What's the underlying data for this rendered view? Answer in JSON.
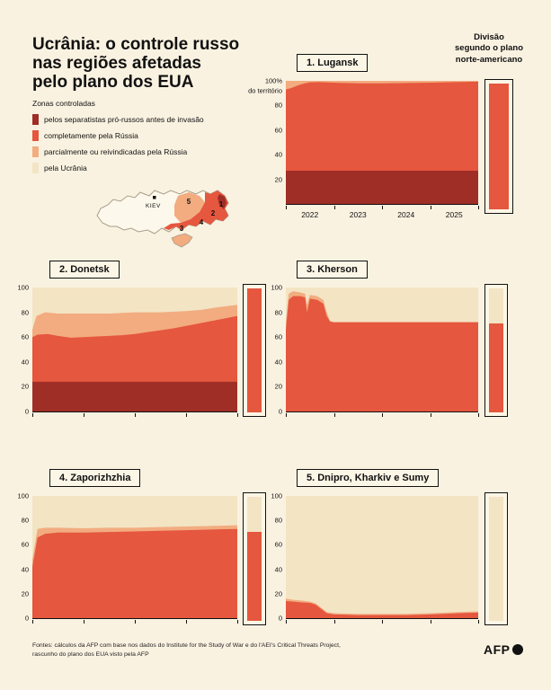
{
  "title": "Ucrânia: o controle russo\nnas regiões afetadas\npelo plano dos EUA",
  "colors": {
    "separatists": "#9f2e26",
    "russia": "#e5573e",
    "claimed": "#f2ac80",
    "ukraine": "#f3e4c4",
    "background": "#faf2e1"
  },
  "legend": {
    "heading": "Zonas controladas",
    "items": [
      {
        "label": "pelos separatistas pró-russos antes de invasão",
        "color_key": "separatists"
      },
      {
        "label": "completamente pela Rússia",
        "color_key": "russia"
      },
      {
        "label": "parcialmente ou reivindicadas pela Rússia",
        "color_key": "claimed"
      },
      {
        "label": "pela Ucrânia",
        "color_key": "ukraine"
      }
    ]
  },
  "map": {
    "capital_label": "KIEV",
    "markers": [
      "1",
      "2",
      "3",
      "4",
      "5"
    ]
  },
  "plan": {
    "heading": "Divisão\nsegundo o plano\nnorte-americano"
  },
  "footer": {
    "sources": "Fontes: cálculos da AFP com base nos dados do Institute for the Study of War e do l'AEI's Critical Threats Project,\nrascunho do plano dos EUA visto pela AFP",
    "logo": "AFP"
  },
  "chart_data": [
    {
      "name": "Lugansk",
      "title": "1. Lugansk",
      "type": "area",
      "x_range": [
        2022,
        2026
      ],
      "ylim": [
        0,
        100
      ],
      "y_ticks": [
        {
          "v": 100,
          "label": "100%"
        },
        {
          "v": 92,
          "label": "do território"
        },
        {
          "v": 80,
          "label": "80"
        },
        {
          "v": 60,
          "label": "60"
        },
        {
          "v": 40,
          "label": "40"
        },
        {
          "v": 20,
          "label": "20"
        }
      ],
      "x_labels": [
        {
          "v": 2022.5,
          "label": "2022"
        },
        {
          "v": 2023.5,
          "label": "2023"
        },
        {
          "v": 2024.5,
          "label": "2024"
        },
        {
          "v": 2025.5,
          "label": "2025"
        }
      ],
      "series": [
        {
          "name": "reivindicado pela Rússia",
          "color": "claimed",
          "x": [
            2022,
            2026
          ],
          "values": [
            100,
            100
          ]
        },
        {
          "name": "controlado pela Rússia",
          "color": "russia",
          "x": [
            2022,
            2022.1,
            2022.2,
            2022.3,
            2022.4,
            2022.5,
            2022.7,
            2023,
            2023.5,
            2024,
            2024.5,
            2025,
            2025.5,
            2026
          ],
          "values": [
            93,
            94,
            95.5,
            97,
            98,
            98.8,
            99,
            98.5,
            98,
            98,
            98.3,
            98.5,
            99,
            99.4
          ]
        },
        {
          "name": "separatistas antes da invasão",
          "color": "separatists",
          "x": [
            2022,
            2026
          ],
          "values": [
            27,
            27
          ]
        }
      ],
      "plan_russia_pct": 100
    },
    {
      "name": "Donetsk",
      "title": "2. Donetsk",
      "type": "area",
      "x_range": [
        2022,
        2026
      ],
      "ylim": [
        0,
        100
      ],
      "y_ticks": [
        {
          "v": 100,
          "label": "100"
        },
        {
          "v": 80,
          "label": "80"
        },
        {
          "v": 60,
          "label": "60"
        },
        {
          "v": 40,
          "label": "40"
        },
        {
          "v": 20,
          "label": "20"
        },
        {
          "v": 0,
          "label": "0"
        }
      ],
      "series": [
        {
          "name": "reivindicado pela Rússia",
          "color": "claimed",
          "x": [
            2022,
            2022.08,
            2022.25,
            2022.5,
            2023,
            2023.5,
            2024,
            2024.5,
            2025,
            2025.3,
            2025.6,
            2026
          ],
          "values": [
            66,
            77,
            80,
            79,
            79,
            79,
            80,
            80,
            81,
            82,
            84,
            86
          ]
        },
        {
          "name": "controlado pela Rússia",
          "color": "russia",
          "x": [
            2022,
            2022.1,
            2022.3,
            2022.5,
            2022.75,
            2023,
            2023.25,
            2023.5,
            2023.75,
            2024,
            2024.25,
            2024.5,
            2024.75,
            2025,
            2025.25,
            2025.5,
            2025.75,
            2026
          ],
          "values": [
            60,
            62,
            62.5,
            61,
            59.5,
            60,
            60.5,
            61,
            61.5,
            62.5,
            64,
            65.5,
            67,
            69,
            71,
            73,
            75,
            77
          ]
        },
        {
          "name": "separatistas antes da invasão",
          "color": "separatists",
          "x": [
            2022,
            2026
          ],
          "values": [
            24,
            24
          ]
        }
      ],
      "plan_russia_pct": 100
    },
    {
      "name": "Kherson",
      "title": "3. Kherson",
      "type": "area",
      "x_range": [
        2022,
        2026
      ],
      "ylim": [
        0,
        100
      ],
      "y_ticks": [
        {
          "v": 100,
          "label": "100"
        },
        {
          "v": 80,
          "label": "80"
        },
        {
          "v": 60,
          "label": "60"
        },
        {
          "v": 40,
          "label": "40"
        },
        {
          "v": 20,
          "label": "20"
        },
        {
          "v": 0,
          "label": "0"
        }
      ],
      "series": [
        {
          "name": "reivindicado pela Rússia",
          "color": "claimed",
          "x": [
            2022,
            2022.06,
            2022.15,
            2022.3,
            2022.4,
            2022.44,
            2022.5,
            2022.65,
            2022.78,
            2022.85,
            2022.92,
            2023,
            2026
          ],
          "values": [
            72,
            95,
            97,
            96,
            95,
            86,
            94,
            93,
            90,
            80,
            73,
            72,
            72
          ]
        },
        {
          "name": "controlado pela Rússia",
          "color": "russia",
          "x": [
            2022,
            2022.06,
            2022.15,
            2022.3,
            2022.4,
            2022.44,
            2022.5,
            2022.65,
            2022.78,
            2022.85,
            2022.92,
            2023,
            2026
          ],
          "values": [
            66,
            90,
            93,
            93,
            92,
            80,
            91,
            90,
            87,
            77,
            72.5,
            72,
            72
          ]
        }
      ],
      "plan_russia_pct": 72
    },
    {
      "name": "Zaporizhzhia",
      "title": "4. Zaporizhzhia",
      "type": "area",
      "x_range": [
        2022,
        2026
      ],
      "ylim": [
        0,
        100
      ],
      "y_ticks": [
        {
          "v": 100,
          "label": "100"
        },
        {
          "v": 80,
          "label": "80"
        },
        {
          "v": 60,
          "label": "60"
        },
        {
          "v": 40,
          "label": "40"
        },
        {
          "v": 20,
          "label": "20"
        },
        {
          "v": 0,
          "label": "0"
        }
      ],
      "series": [
        {
          "name": "reivindicado pela Rússia",
          "color": "claimed",
          "x": [
            2022,
            2022.1,
            2022.25,
            2022.5,
            2023,
            2023.5,
            2024,
            2024.5,
            2025,
            2025.5,
            2026
          ],
          "values": [
            48,
            73,
            74,
            74,
            73.5,
            74,
            74,
            74.5,
            75,
            75.5,
            76
          ]
        },
        {
          "name": "controlado pela Rússia",
          "color": "russia",
          "x": [
            2022,
            2022.1,
            2022.25,
            2022.5,
            2023,
            2023.5,
            2024,
            2024.5,
            2025,
            2025.5,
            2026
          ],
          "values": [
            42,
            66,
            69,
            70,
            70,
            70.5,
            71,
            71.5,
            72,
            72.5,
            73
          ]
        }
      ],
      "plan_russia_pct": 72
    },
    {
      "name": "Dnipro, Kharkiv e Sumy",
      "title": "5. Dnipro, Kharkiv e Sumy",
      "type": "area",
      "x_range": [
        2022,
        2026
      ],
      "ylim": [
        0,
        100
      ],
      "y_ticks": [
        {
          "v": 100,
          "label": "100"
        },
        {
          "v": 80,
          "label": "80"
        },
        {
          "v": 60,
          "label": "60"
        },
        {
          "v": 40,
          "label": "40"
        },
        {
          "v": 20,
          "label": "20"
        },
        {
          "v": 0,
          "label": "0"
        }
      ],
      "series": [
        {
          "name": "reivindicado pela Rússia",
          "color": "claimed",
          "x": [
            2022,
            2022.15,
            2022.3,
            2022.5,
            2022.62,
            2022.72,
            2022.85,
            2023,
            2023.5,
            2024,
            2024.5,
            2025,
            2025.3,
            2025.6,
            2026
          ],
          "values": [
            16,
            15,
            14.5,
            13.5,
            12,
            9,
            5,
            4,
            3.5,
            3.5,
            3.5,
            4,
            4.5,
            5,
            5.5
          ]
        },
        {
          "name": "controlado pela Rússia",
          "color": "russia",
          "x": [
            2022,
            2022.15,
            2022.3,
            2022.5,
            2022.62,
            2022.72,
            2022.85,
            2023,
            2023.5,
            2024,
            2024.5,
            2025,
            2025.3,
            2025.6,
            2026
          ],
          "values": [
            14,
            13.5,
            13,
            12.5,
            11,
            8,
            4,
            3,
            2.5,
            2.5,
            2.5,
            3,
            3.5,
            4,
            4.5
          ]
        }
      ],
      "plan_russia_pct": 0
    }
  ]
}
